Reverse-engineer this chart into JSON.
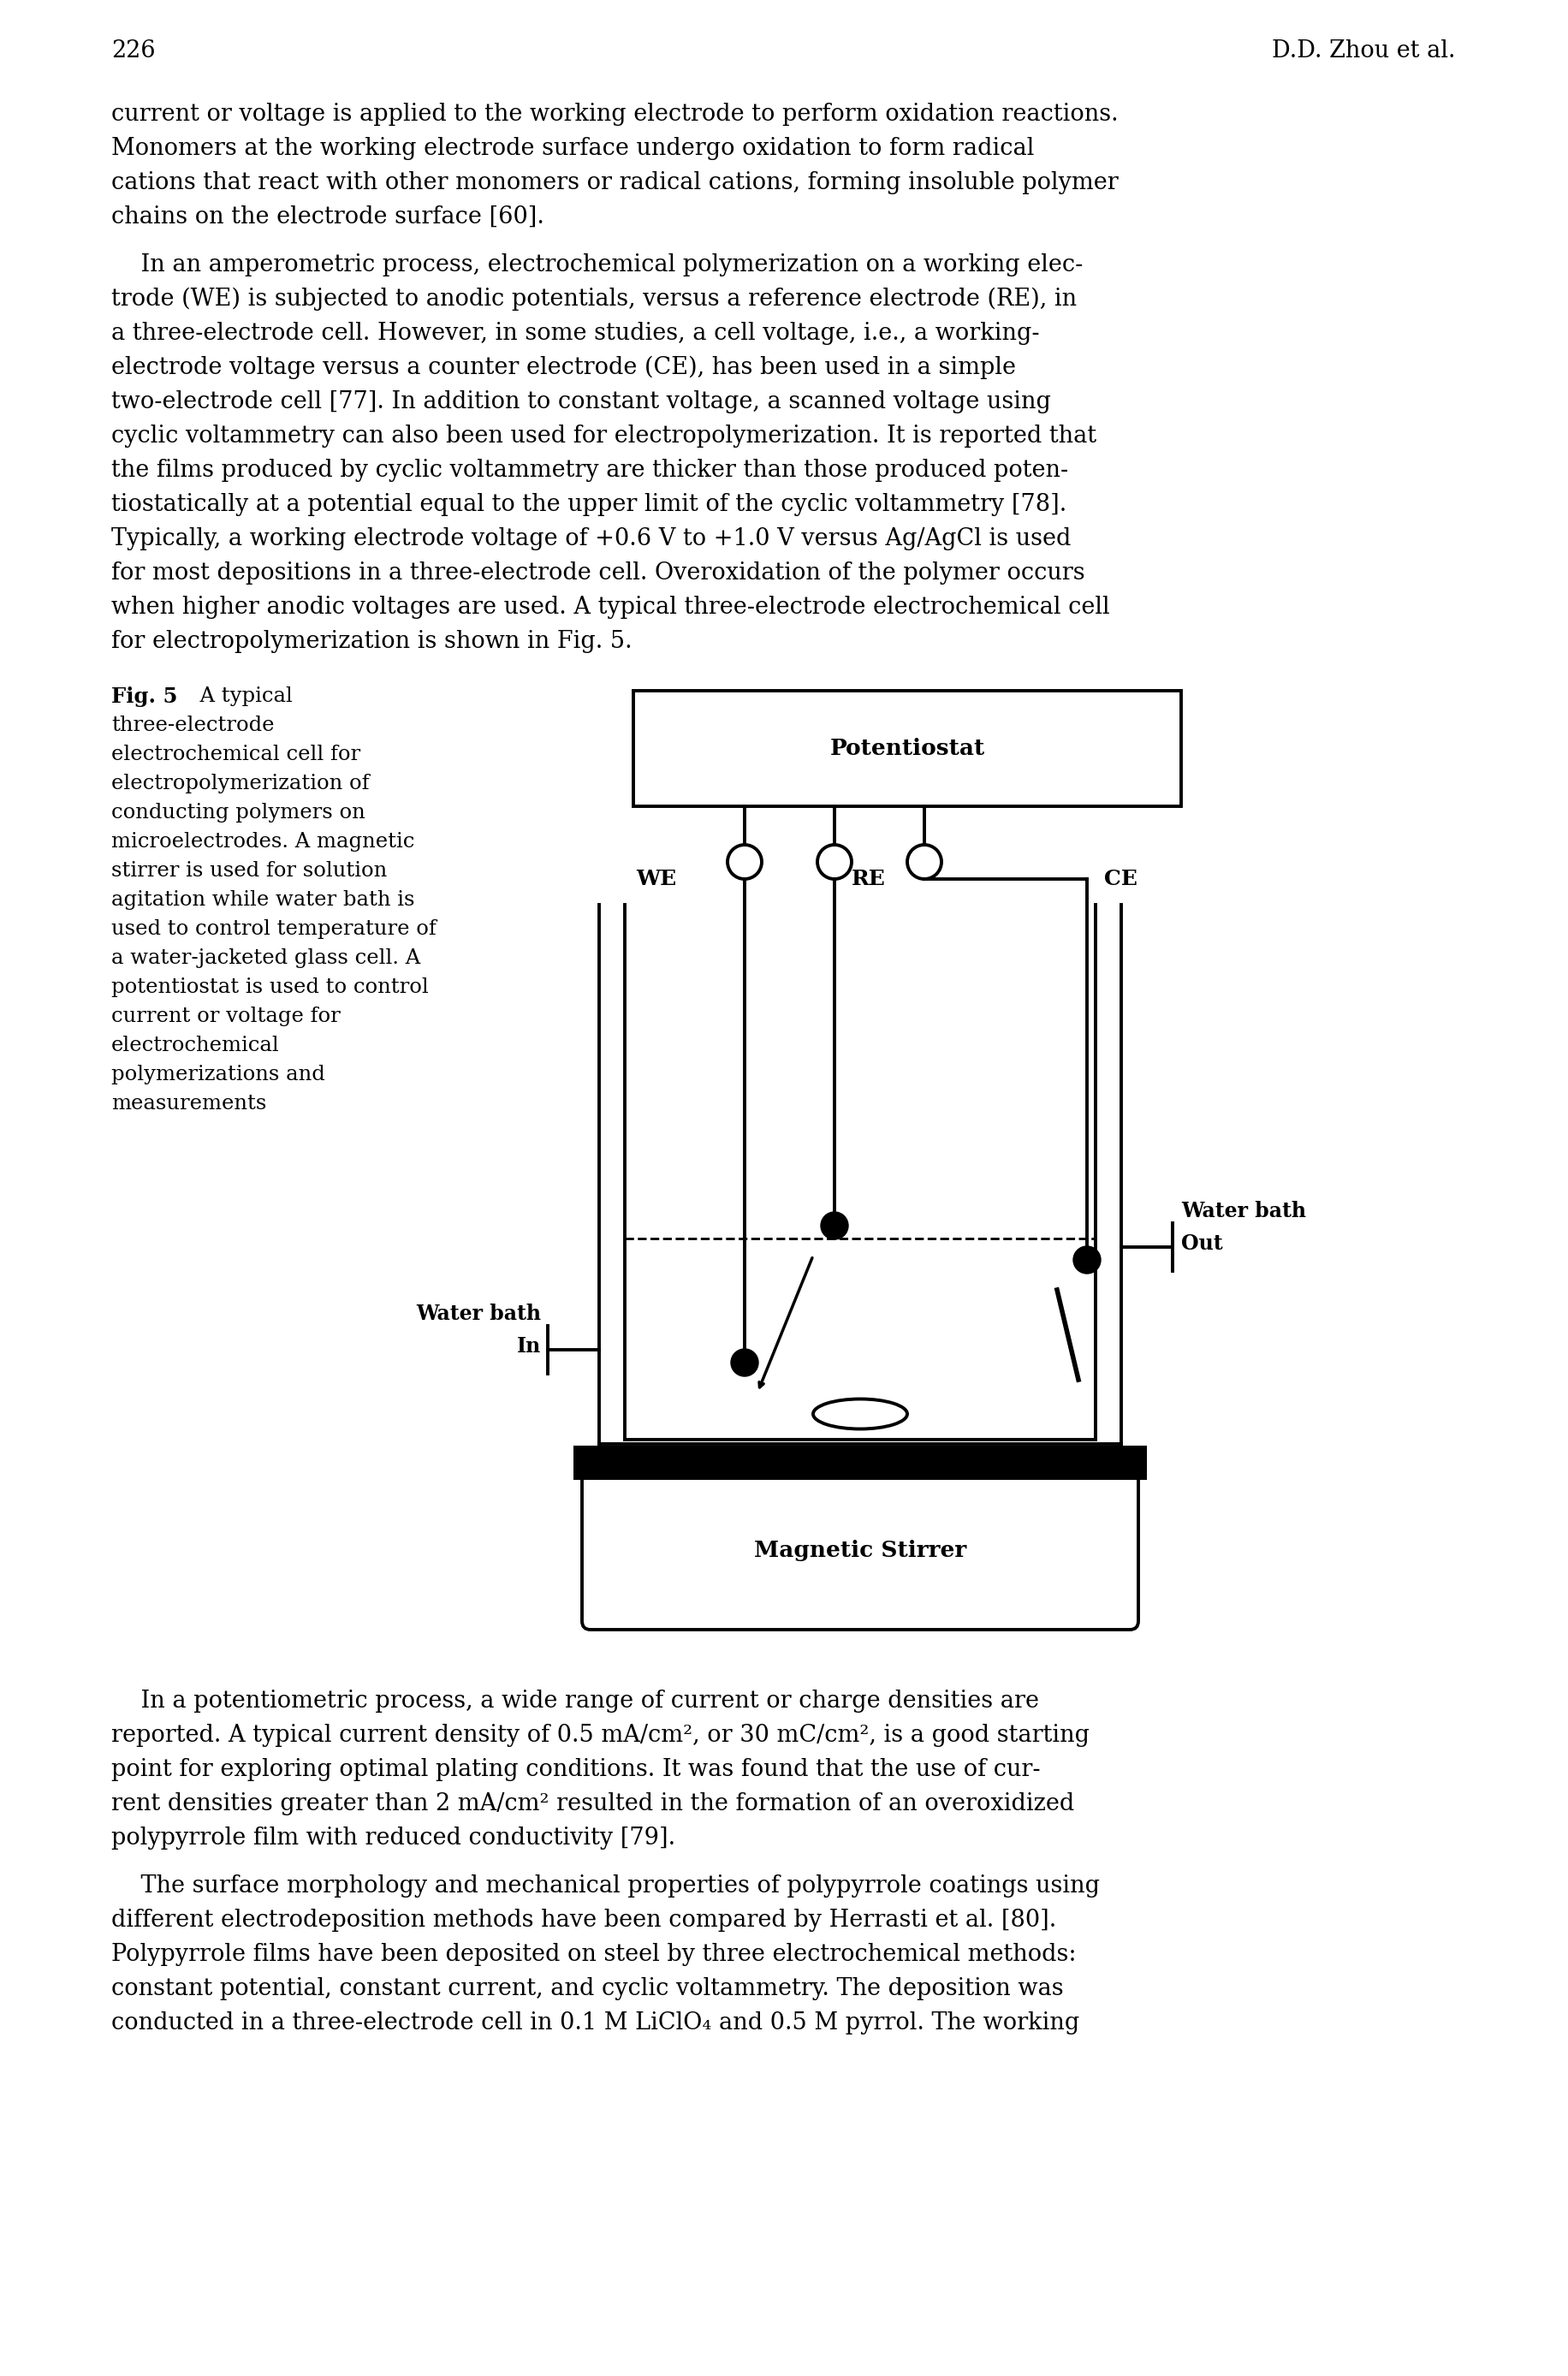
{
  "page_number": "226",
  "author_header": "D.D. Zhou et al.",
  "background_color": "#ffffff",
  "text_color": "#000000",
  "p1_lines": [
    "current or voltage is applied to the working electrode to perform oxidation reactions.",
    "Monomers at the working electrode surface undergo oxidation to form radical",
    "cations that react with other monomers or radical cations, forming insoluble polymer",
    "chains on the electrode surface [60]."
  ],
  "p2_lines": [
    "    In an amperometric process, electrochemical polymerization on a working elec-",
    "trode (WE) is subjected to anodic potentials, versus a reference electrode (RE), in",
    "a three-electrode cell. However, in some studies, a cell voltage, i.e., a working-",
    "electrode voltage versus a counter electrode (CE), has been used in a simple",
    "two-electrode cell [77]. In addition to constant voltage, a scanned voltage using",
    "cyclic voltammetry can also been used for electropolymerization. It is reported that",
    "the films produced by cyclic voltammetry are thicker than those produced poten-",
    "tiostatically at a potential equal to the upper limit of the cyclic voltammetry [78].",
    "Typically, a working electrode voltage of +0.6 V to +1.0 V versus Ag/AgCl is used",
    "for most depositions in a three-electrode cell. Overoxidation of the polymer occurs",
    "when higher anodic voltages are used. A typical three-electrode electrochemical cell",
    "for electropolymerization is shown in Fig. 5."
  ],
  "fig_caption_lines": [
    "three-electrode",
    "electrochemical cell for",
    "electropolymerization of",
    "conducting polymers on",
    "microelectrodes. A magnetic",
    "stirrer is used for solution",
    "agitation while water bath is",
    "used to control temperature of",
    "a water-jacketed glass cell. A",
    "potentiostat is used to control",
    "current or voltage for",
    "electrochemical",
    "polymerizations and",
    "measurements"
  ],
  "p3_lines": [
    "    In a potentiometric process, a wide range of current or charge densities are",
    "reported. A typical current density of 0.5 mA/cm², or 30 mC/cm², is a good starting",
    "point for exploring optimal plating conditions. It was found that the use of cur-",
    "rent densities greater than 2 mA/cm² resulted in the formation of an overoxidized",
    "polypyrrole film with reduced conductivity [79]."
  ],
  "p4_lines": [
    "    The surface morphology and mechanical properties of polypyrrole coatings using",
    "different electrodeposition methods have been compared by Herrasti et al. [80].",
    "Polypyrrole films have been deposited on steel by three electrochemical methods:",
    "constant potential, constant current, and cyclic voltammetry. The deposition was",
    "conducted in a three-electrode cell in 0.1 M LiClO₄ and 0.5 M pyrrol. The working"
  ]
}
